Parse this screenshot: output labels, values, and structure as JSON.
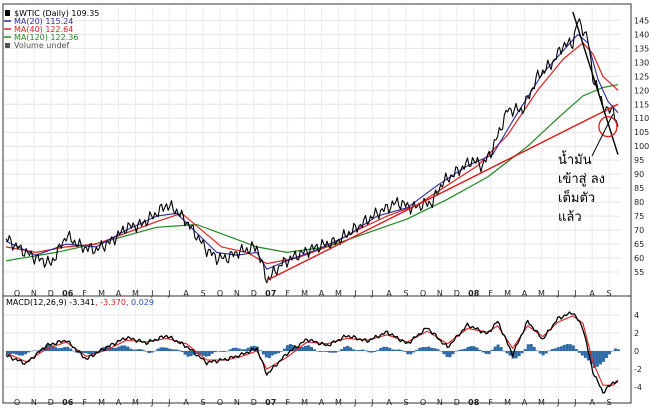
{
  "chart_data": [
    {
      "type": "line",
      "panel": "price",
      "symbol": "$WTIC (Daily) 109.35",
      "legend": [
        {
          "label": "$WTIC (Daily) 109.35",
          "color": "#000000",
          "icon": "bar-icon"
        },
        {
          "label": "MA(20) 115.24",
          "color": "#2a2a9c",
          "icon": "line-icon"
        },
        {
          "label": "MA(40) 122.64",
          "color": "#dd2222",
          "icon": "line-icon"
        },
        {
          "label": "MA(120) 122.36",
          "color": "#228822",
          "icon": "line-icon"
        },
        {
          "label": "Volume undef",
          "color": "#555555",
          "icon": "volume-icon"
        }
      ],
      "legend_position": "top-left",
      "x_ticks": [
        "O",
        "N",
        "D",
        "06",
        "F",
        "M",
        "A",
        "M",
        "J",
        "J",
        "A",
        "S",
        "O",
        "N",
        "D",
        "07",
        "F",
        "M",
        "A",
        "M",
        "J",
        "J",
        "A",
        "S",
        "O",
        "N",
        "D",
        "08",
        "F",
        "M",
        "A",
        "M",
        "J",
        "J",
        "A",
        "S"
      ],
      "y_ticks": [
        55,
        60,
        65,
        70,
        75,
        80,
        85,
        90,
        95,
        100,
        105,
        110,
        115,
        120,
        125,
        130,
        135,
        140,
        145
      ],
      "ylim": [
        50,
        148
      ],
      "grid": true,
      "price_points": [
        [
          0,
          67
        ],
        [
          3,
          63
        ],
        [
          6,
          60
        ],
        [
          9,
          58
        ],
        [
          12,
          68
        ],
        [
          15,
          64
        ],
        [
          18,
          63
        ],
        [
          21,
          66
        ],
        [
          24,
          71
        ],
        [
          27,
          72
        ],
        [
          30,
          76
        ],
        [
          32,
          79
        ],
        [
          34,
          77
        ],
        [
          36,
          73
        ],
        [
          38,
          68
        ],
        [
          40,
          63
        ],
        [
          42,
          60
        ],
        [
          44,
          60
        ],
        [
          46,
          62
        ],
        [
          48,
          63
        ],
        [
          50,
          64
        ],
        [
          52,
          52
        ],
        [
          53,
          54
        ],
        [
          55,
          58
        ],
        [
          58,
          61
        ],
        [
          62,
          64
        ],
        [
          66,
          66
        ],
        [
          70,
          71
        ],
        [
          74,
          76
        ],
        [
          78,
          80
        ],
        [
          81,
          78
        ],
        [
          83,
          79
        ],
        [
          85,
          80
        ],
        [
          87,
          87
        ],
        [
          90,
          91
        ],
        [
          93,
          95
        ],
        [
          95,
          93
        ],
        [
          97,
          99
        ],
        [
          100,
          113
        ],
        [
          103,
          113
        ],
        [
          106,
          125
        ],
        [
          109,
          130
        ],
        [
          111,
          136
        ],
        [
          113,
          137
        ],
        [
          114,
          145
        ],
        [
          115,
          142
        ],
        [
          116,
          138
        ],
        [
          117,
          125
        ],
        [
          118,
          120
        ],
        [
          119,
          115
        ],
        [
          120,
          112
        ],
        [
          121,
          114
        ],
        [
          122,
          107
        ]
      ],
      "ma20_points": [
        [
          0,
          66
        ],
        [
          6,
          61
        ],
        [
          12,
          65
        ],
        [
          18,
          64
        ],
        [
          24,
          70
        ],
        [
          30,
          75
        ],
        [
          34,
          76
        ],
        [
          38,
          69
        ],
        [
          42,
          62
        ],
        [
          46,
          61
        ],
        [
          50,
          62
        ],
        [
          52,
          56
        ],
        [
          56,
          59
        ],
        [
          62,
          63
        ],
        [
          68,
          68
        ],
        [
          74,
          75
        ],
        [
          80,
          78
        ],
        [
          86,
          86
        ],
        [
          92,
          93
        ],
        [
          97,
          97
        ],
        [
          102,
          112
        ],
        [
          107,
          126
        ],
        [
          111,
          134
        ],
        [
          114,
          140
        ],
        [
          116,
          137
        ],
        [
          118,
          124
        ],
        [
          120,
          116
        ],
        [
          122,
          112
        ]
      ],
      "ma40_points": [
        [
          0,
          64
        ],
        [
          6,
          62
        ],
        [
          12,
          64
        ],
        [
          18,
          65
        ],
        [
          24,
          69
        ],
        [
          30,
          73
        ],
        [
          35,
          76
        ],
        [
          39,
          70
        ],
        [
          43,
          64
        ],
        [
          48,
          62
        ],
        [
          52,
          58
        ],
        [
          58,
          60
        ],
        [
          64,
          64
        ],
        [
          70,
          70
        ],
        [
          76,
          75
        ],
        [
          82,
          79
        ],
        [
          88,
          86
        ],
        [
          94,
          93
        ],
        [
          100,
          104
        ],
        [
          106,
          120
        ],
        [
          111,
          131
        ],
        [
          115,
          137
        ],
        [
          117,
          133
        ],
        [
          119,
          125
        ],
        [
          122,
          120
        ]
      ],
      "ma120_points": [
        [
          0,
          59
        ],
        [
          10,
          62
        ],
        [
          20,
          66
        ],
        [
          30,
          71
        ],
        [
          38,
          72
        ],
        [
          44,
          68
        ],
        [
          50,
          64
        ],
        [
          56,
          62
        ],
        [
          64,
          64
        ],
        [
          72,
          69
        ],
        [
          80,
          74
        ],
        [
          88,
          81
        ],
        [
          96,
          89
        ],
        [
          104,
          100
        ],
        [
          110,
          110
        ],
        [
          115,
          118
        ],
        [
          119,
          121
        ],
        [
          122,
          122
        ]
      ],
      "annotations": {
        "text_lines": [
          "น้ำมัน",
          "เข้าสู่ ลง",
          "เต็มตัว",
          "แล้ว"
        ],
        "uptrend_line": [
          [
            52,
            52
          ],
          [
            122,
            115
          ]
        ],
        "downtrend_line": [
          [
            113,
            148
          ],
          [
            122,
            97
          ]
        ],
        "circle_center": [
          120,
          107
        ]
      }
    },
    {
      "type": "line",
      "panel": "macd",
      "legend": [
        {
          "label": "MACD(12,26,9)",
          "value": "-3.341",
          "color": "#000000"
        },
        {
          "label": "",
          "value": "-3.370",
          "color": "#dd2222"
        },
        {
          "label": "",
          "value": "0.029",
          "color": "#2255aa"
        }
      ],
      "y_ticks": [
        4,
        2,
        0,
        -2,
        -4
      ],
      "ylim": [
        -5,
        5
      ],
      "macd_points": [
        [
          0,
          -0.5
        ],
        [
          4,
          -1.4
        ],
        [
          8,
          0.6
        ],
        [
          12,
          1.2
        ],
        [
          16,
          -0.9
        ],
        [
          20,
          0.4
        ],
        [
          24,
          1.5
        ],
        [
          28,
          0.9
        ],
        [
          32,
          1.7
        ],
        [
          36,
          0.5
        ],
        [
          40,
          -1.3
        ],
        [
          44,
          -0.9
        ],
        [
          47,
          -0.4
        ],
        [
          50,
          0.3
        ],
        [
          52,
          -2.6
        ],
        [
          56,
          -0.3
        ],
        [
          60,
          1.3
        ],
        [
          64,
          0.6
        ],
        [
          68,
          1.7
        ],
        [
          72,
          1.1
        ],
        [
          76,
          2.1
        ],
        [
          80,
          0.8
        ],
        [
          84,
          2.6
        ],
        [
          88,
          0.4
        ],
        [
          92,
          2.9
        ],
        [
          96,
          1.9
        ],
        [
          98,
          3.3
        ],
        [
          101,
          -0.4
        ],
        [
          104,
          3.3
        ],
        [
          107,
          1.3
        ],
        [
          110,
          3.6
        ],
        [
          113,
          4.3
        ],
        [
          115,
          2.6
        ],
        [
          117,
          -2.3
        ],
        [
          119,
          -4.6
        ],
        [
          121,
          -3.5
        ],
        [
          122,
          -3.3
        ]
      ],
      "signal_points": [
        [
          0,
          -0.2
        ],
        [
          4,
          -1.2
        ],
        [
          8,
          0.2
        ],
        [
          12,
          1.0
        ],
        [
          16,
          -0.6
        ],
        [
          20,
          0.1
        ],
        [
          24,
          1.2
        ],
        [
          28,
          1.0
        ],
        [
          32,
          1.4
        ],
        [
          36,
          0.8
        ],
        [
          40,
          -1.0
        ],
        [
          44,
          -1.0
        ],
        [
          47,
          -0.6
        ],
        [
          50,
          0.0
        ],
        [
          52,
          -2.0
        ],
        [
          56,
          -0.7
        ],
        [
          60,
          1.0
        ],
        [
          64,
          0.8
        ],
        [
          68,
          1.4
        ],
        [
          72,
          1.2
        ],
        [
          76,
          1.8
        ],
        [
          80,
          1.0
        ],
        [
          84,
          2.2
        ],
        [
          88,
          0.8
        ],
        [
          92,
          2.5
        ],
        [
          96,
          2.1
        ],
        [
          98,
          2.8
        ],
        [
          101,
          0.3
        ],
        [
          104,
          2.8
        ],
        [
          107,
          1.6
        ],
        [
          110,
          3.2
        ],
        [
          113,
          3.9
        ],
        [
          115,
          3.1
        ],
        [
          117,
          -1.2
        ],
        [
          119,
          -3.8
        ],
        [
          121,
          -3.8
        ],
        [
          122,
          -3.4
        ]
      ]
    }
  ]
}
